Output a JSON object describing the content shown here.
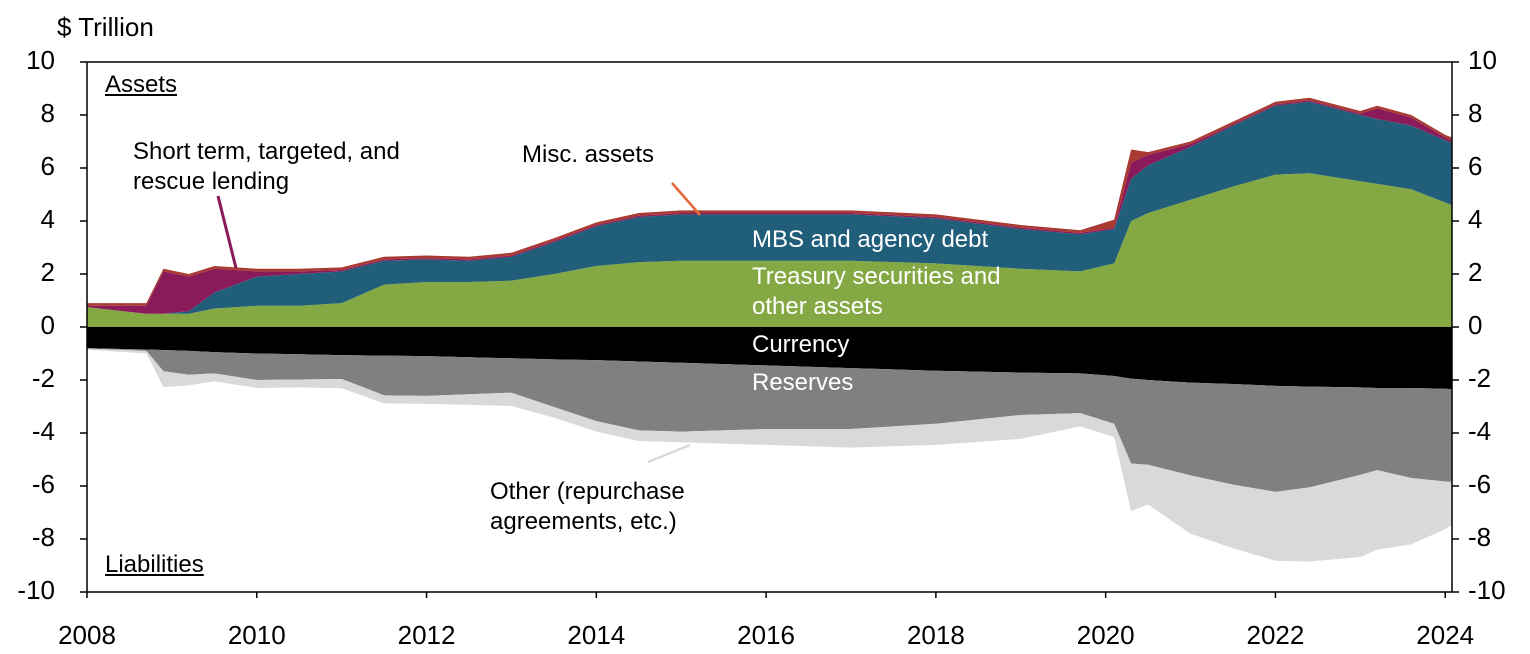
{
  "chart_data": {
    "type": "stacked_area",
    "y_label": "$ Trillion",
    "annotations": [
      "Assets",
      "Liabilities"
    ],
    "x": [
      2008,
      2008.7,
      2008.9,
      2009.2,
      2009.5,
      2010,
      2010.5,
      2011,
      2011.5,
      2012,
      2012.5,
      2013,
      2013.5,
      2014,
      2014.5,
      2015,
      2016,
      2017,
      2018,
      2019,
      2019.7,
      2020.1,
      2020.3,
      2020.5,
      2021,
      2021.5,
      2022,
      2022.4,
      2023,
      2023.2,
      2023.6,
      2024,
      2024.08
    ],
    "xlim": [
      2008,
      2024.08
    ],
    "xticks": [
      2008,
      2010,
      2012,
      2014,
      2016,
      2018,
      2020,
      2022,
      2024
    ],
    "ylim": [
      -10,
      10
    ],
    "yticks": [
      -10,
      -8,
      -6,
      -4,
      -2,
      0,
      2,
      4,
      6,
      8,
      10
    ],
    "series": [
      {
        "name": "Treasury securities and other assets",
        "color": "#84a944",
        "values": [
          0.75,
          0.5,
          0.5,
          0.5,
          0.7,
          0.8,
          0.8,
          0.9,
          1.6,
          1.7,
          1.7,
          1.75,
          2.0,
          2.3,
          2.45,
          2.5,
          2.5,
          2.5,
          2.4,
          2.2,
          2.1,
          2.4,
          4.0,
          4.3,
          4.8,
          5.3,
          5.75,
          5.8,
          5.5,
          5.4,
          5.2,
          4.7,
          4.6
        ]
      },
      {
        "name": "MBS and agency debt",
        "color": "#215e7a",
        "values": [
          0,
          0,
          0,
          0.1,
          0.6,
          1.1,
          1.2,
          1.2,
          0.9,
          0.85,
          0.8,
          0.9,
          1.2,
          1.5,
          1.7,
          1.75,
          1.75,
          1.75,
          1.7,
          1.5,
          1.4,
          1.3,
          1.6,
          1.8,
          2.0,
          2.3,
          2.6,
          2.7,
          2.5,
          2.45,
          2.4,
          2.35,
          2.35
        ]
      },
      {
        "name": "Short term, targeted, and rescue lending",
        "color": "#8b1a5a",
        "values": [
          0.05,
          0.3,
          1.6,
          1.3,
          0.9,
          0.2,
          0.1,
          0.05,
          0.05,
          0.05,
          0.05,
          0.05,
          0.05,
          0.05,
          0.05,
          0.05,
          0.05,
          0.05,
          0.05,
          0.05,
          0.05,
          0.05,
          0.6,
          0.4,
          0.1,
          0.05,
          0.05,
          0.05,
          0.05,
          0.4,
          0.3,
          0.1,
          0.1
        ]
      },
      {
        "name": "Misc. assets",
        "color": "#a83a32",
        "values": [
          0.1,
          0.1,
          0.1,
          0.1,
          0.1,
          0.1,
          0.1,
          0.1,
          0.1,
          0.1,
          0.1,
          0.1,
          0.1,
          0.1,
          0.1,
          0.1,
          0.1,
          0.1,
          0.1,
          0.1,
          0.1,
          0.3,
          0.5,
          0.1,
          0.1,
          0.1,
          0.1,
          0.1,
          0.1,
          0.1,
          0.1,
          0.1,
          0.1
        ]
      },
      {
        "name": "Currency",
        "color": "#000000",
        "values": [
          -0.8,
          -0.85,
          -0.87,
          -0.9,
          -0.95,
          -1.0,
          -1.03,
          -1.06,
          -1.08,
          -1.1,
          -1.14,
          -1.18,
          -1.22,
          -1.25,
          -1.3,
          -1.35,
          -1.45,
          -1.55,
          -1.65,
          -1.72,
          -1.75,
          -1.85,
          -1.95,
          -2.0,
          -2.1,
          -2.15,
          -2.22,
          -2.25,
          -2.28,
          -2.3,
          -2.3,
          -2.33,
          -2.35
        ]
      },
      {
        "name": "Reserves",
        "color": "#808080",
        "values": [
          -0.01,
          -0.05,
          -0.8,
          -0.9,
          -0.8,
          -1.0,
          -0.95,
          -0.9,
          -1.5,
          -1.5,
          -1.4,
          -1.3,
          -1.8,
          -2.3,
          -2.6,
          -2.6,
          -2.4,
          -2.3,
          -2.0,
          -1.6,
          -1.5,
          -1.8,
          -3.2,
          -3.2,
          -3.5,
          -3.8,
          -4.0,
          -3.8,
          -3.3,
          -3.1,
          -3.4,
          -3.5,
          -3.5
        ]
      },
      {
        "name": "Other (repurchase agreements, etc.)",
        "color": "#d9d9d9",
        "values": [
          -0.05,
          -0.1,
          -0.6,
          -0.4,
          -0.3,
          -0.3,
          -0.3,
          -0.35,
          -0.3,
          -0.3,
          -0.4,
          -0.5,
          -0.4,
          -0.4,
          -0.4,
          -0.4,
          -0.6,
          -0.7,
          -0.8,
          -0.9,
          -0.5,
          -0.5,
          -1.8,
          -1.5,
          -2.2,
          -2.4,
          -2.6,
          -2.8,
          -3.1,
          -3.0,
          -2.5,
          -1.8,
          -1.6
        ]
      }
    ]
  }
}
